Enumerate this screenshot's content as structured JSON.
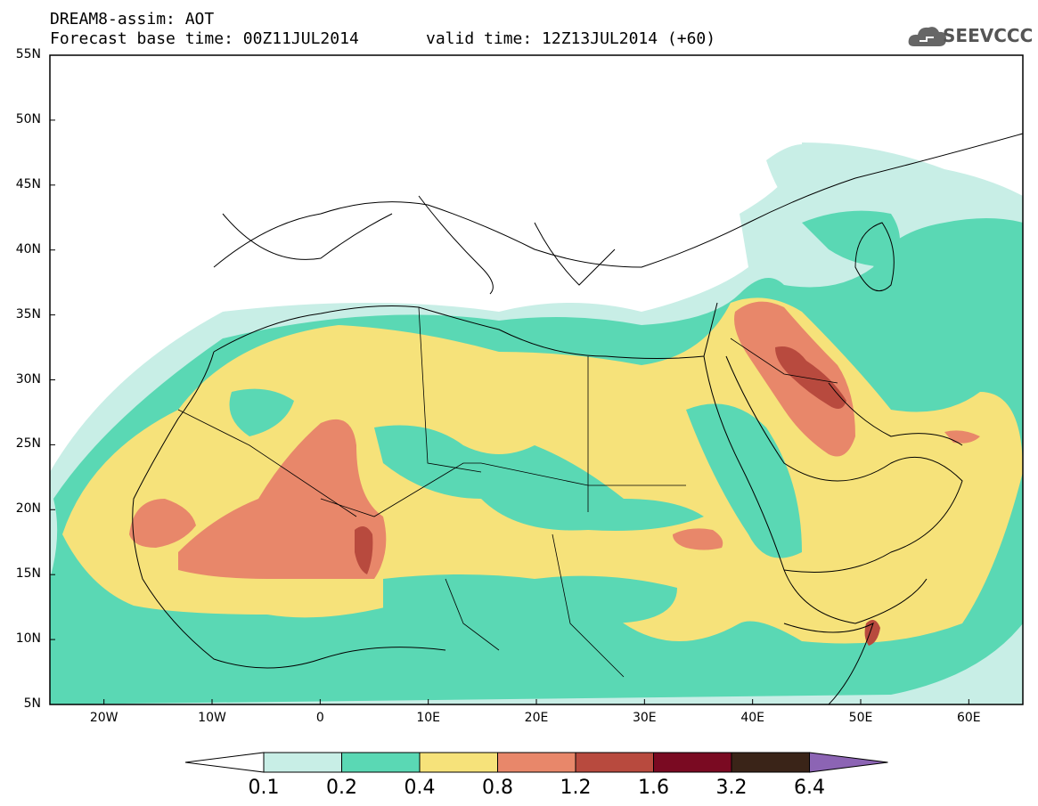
{
  "header": {
    "title": "DREAM8-assim: AOT",
    "base_time": "Forecast base time: 00Z11JUL2014",
    "valid_time": "valid time: 12Z13JUL2014 (+60)"
  },
  "logo": {
    "text": "SEEVCCC",
    "icon": "cloud-icon"
  },
  "map": {
    "lon_range": [
      -25,
      65
    ],
    "lat_range": [
      5,
      55
    ],
    "lat_labels": [
      "55N",
      "50N",
      "45N",
      "40N",
      "35N",
      "30N",
      "25N",
      "20N",
      "15N",
      "10N",
      "5N"
    ],
    "lon_labels": [
      "20W",
      "10W",
      "0",
      "10E",
      "20E",
      "30E",
      "40E",
      "50E",
      "60E"
    ]
  },
  "colorbar": {
    "levels": [
      "0.1",
      "0.2",
      "0.4",
      "0.8",
      "1.2",
      "1.6",
      "3.2",
      "6.4"
    ],
    "colors": [
      "#ffffff",
      "#c8eee6",
      "#5ad8b4",
      "#f6e27a",
      "#e8876a",
      "#b84a3e",
      "#7a0a22",
      "#3a2418",
      "#8c64b4"
    ]
  }
}
